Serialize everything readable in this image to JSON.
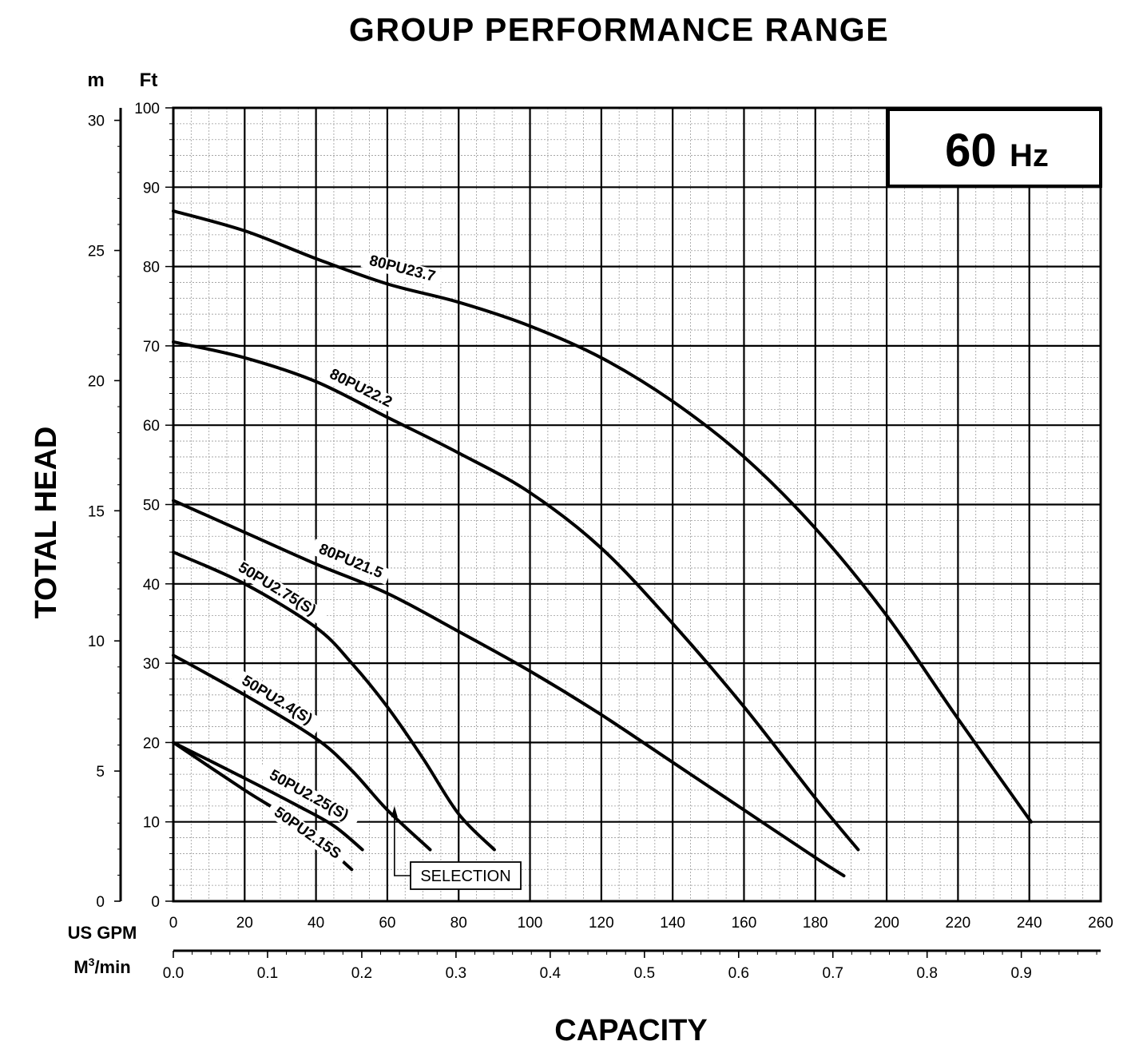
{
  "chart_data": {
    "type": "line",
    "title": "GROUP PERFORMANCE RANGE",
    "frequency_box": {
      "value": "60",
      "unit": "Hz"
    },
    "ylabel": "TOTAL HEAD",
    "xlabel": "CAPACITY",
    "y_units": {
      "m": "m",
      "ft": "Ft"
    },
    "x_units": {
      "gpm": "US GPM",
      "m3_base": "M",
      "m3_sup": "3",
      "m3_tail": "/min"
    },
    "ylim_ft": [
      0,
      100
    ],
    "ylim_m": [
      0,
      30.48
    ],
    "xlim_gpm": [
      0,
      260
    ],
    "y_ticks_ft": [
      "0",
      "10",
      "20",
      "30",
      "40",
      "50",
      "60",
      "70",
      "80",
      "90",
      "100"
    ],
    "y_ticks_m": [
      "0",
      "5",
      "10",
      "15",
      "20",
      "25",
      "30"
    ],
    "x_ticks_gpm": [
      "0",
      "20",
      "40",
      "60",
      "80",
      "100",
      "120",
      "140",
      "160",
      "180",
      "200",
      "220",
      "240",
      "260"
    ],
    "x_ticks_m3": [
      "0.0",
      "0.1",
      "0.2",
      "0.3",
      "0.4",
      "0.5",
      "0.6",
      "0.7",
      "0.8",
      "0.9"
    ],
    "grid": true,
    "series": [
      {
        "name": "80PU23.7",
        "points": [
          [
            0,
            87
          ],
          [
            20,
            84.5
          ],
          [
            40,
            81
          ],
          [
            60,
            77.8
          ],
          [
            80,
            75.5
          ],
          [
            100,
            72.5
          ],
          [
            120,
            68.5
          ],
          [
            140,
            63
          ],
          [
            160,
            56
          ],
          [
            180,
            47
          ],
          [
            200,
            36
          ],
          [
            220,
            23
          ],
          [
            240.5,
            10
          ]
        ]
      },
      {
        "name": "80PU22.2",
        "points": [
          [
            0,
            70.5
          ],
          [
            20,
            68.5
          ],
          [
            40,
            65.5
          ],
          [
            60,
            61
          ],
          [
            80,
            56.5
          ],
          [
            100,
            51.5
          ],
          [
            120,
            44.5
          ],
          [
            140,
            35
          ],
          [
            160,
            24.5
          ],
          [
            180,
            13
          ],
          [
            192,
            6.5
          ]
        ]
      },
      {
        "name": "80PU21.5",
        "points": [
          [
            0,
            50.5
          ],
          [
            20,
            46.5
          ],
          [
            40,
            42.5
          ],
          [
            60,
            38.8
          ],
          [
            80,
            34
          ],
          [
            100,
            29
          ],
          [
            120,
            23.5
          ],
          [
            140,
            17.5
          ],
          [
            160,
            11.5
          ],
          [
            180,
            5.5
          ],
          [
            188,
            3.2
          ]
        ]
      },
      {
        "name": "50PU2.75(S)",
        "points": [
          [
            0,
            44
          ],
          [
            20,
            40
          ],
          [
            40,
            34.5
          ],
          [
            50,
            30
          ],
          [
            60,
            24.5
          ],
          [
            70,
            18
          ],
          [
            80,
            11
          ],
          [
            90,
            6.5
          ]
        ]
      },
      {
        "name": "50PU2.4(S)",
        "points": [
          [
            0,
            31
          ],
          [
            20,
            26
          ],
          [
            40,
            20.5
          ],
          [
            50,
            16.5
          ],
          [
            60,
            11.5
          ],
          [
            72,
            6.5
          ]
        ]
      },
      {
        "name": "50PU2.25(S)",
        "points": [
          [
            0,
            20
          ],
          [
            20,
            15.5
          ],
          [
            35,
            12
          ],
          [
            45,
            9.5
          ],
          [
            53,
            6.5
          ]
        ]
      },
      {
        "name": "50PU2.15S",
        "points": [
          [
            0,
            20
          ],
          [
            20,
            14
          ],
          [
            30,
            11.2
          ],
          [
            40,
            8
          ],
          [
            50,
            4
          ]
        ]
      }
    ],
    "annotations": [
      {
        "text": "SELECTION",
        "arrow_to": [
          62,
          12
        ]
      }
    ]
  }
}
